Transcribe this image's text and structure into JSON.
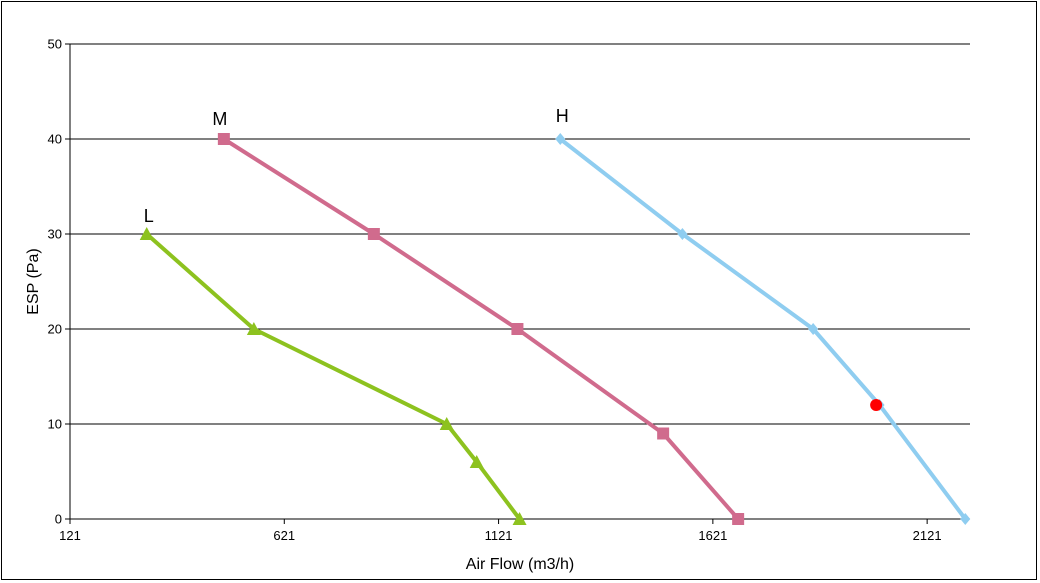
{
  "chart_data": {
    "type": "line",
    "xlabel": "Air Flow (m3/h)",
    "ylabel": "ESP (Pa)",
    "xlim": [
      121,
      2221
    ],
    "ylim": [
      0,
      50
    ],
    "xticks": [
      121,
      621,
      1121,
      1621,
      2121
    ],
    "yticks": [
      0,
      10,
      20,
      30,
      40,
      50
    ],
    "grid": "horizontal",
    "series": [
      {
        "name": "L",
        "color": "#8dc21f",
        "marker": "triangle",
        "points": [
          [
            300,
            30
          ],
          [
            550,
            20
          ],
          [
            1000,
            10
          ],
          [
            1070,
            6
          ],
          [
            1170,
            0
          ]
        ]
      },
      {
        "name": "M",
        "color": "#d06b8d",
        "marker": "square",
        "points": [
          [
            480,
            40
          ],
          [
            830,
            30
          ],
          [
            1165,
            20
          ],
          [
            1505,
            9
          ],
          [
            1680,
            0
          ]
        ]
      },
      {
        "name": "H",
        "color": "#8fcdf0",
        "marker": "diamond",
        "points": [
          [
            1265,
            40
          ],
          [
            1550,
            30
          ],
          [
            1855,
            20
          ],
          [
            2010,
            12
          ],
          [
            2210,
            0
          ]
        ]
      }
    ],
    "marker_point": {
      "x": 2002,
      "y": 12,
      "color": "#ff0000"
    }
  }
}
